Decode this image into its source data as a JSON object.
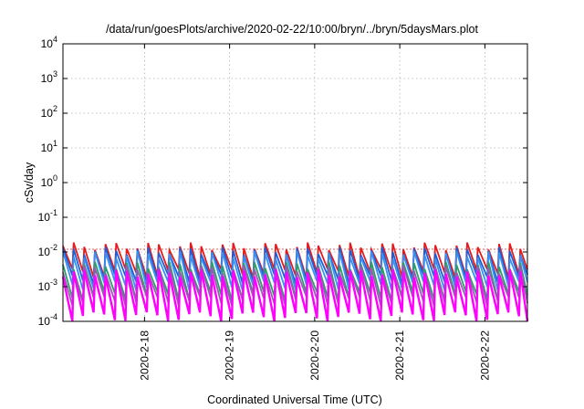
{
  "chart_data": {
    "type": "line",
    "title": "/data/run/goesPlots/archive/2020-02-22/10:00/bryn/../bryn/5daysMars.plot",
    "xlabel": "Coordinated Universal Time (UTC)",
    "ylabel": "cSv/day",
    "yscale": "log",
    "ylim": [
      0.0001,
      10000
    ],
    "y_ticks": [
      {
        "exp": "-4",
        "value": 0.0001
      },
      {
        "exp": "-3",
        "value": 0.001
      },
      {
        "exp": "-2",
        "value": 0.01
      },
      {
        "exp": "-1",
        "value": 0.1
      },
      {
        "exp": "0",
        "value": 1
      },
      {
        "exp": "1",
        "value": 10
      },
      {
        "exp": "2",
        "value": 100
      },
      {
        "exp": "3",
        "value": 1000
      },
      {
        "exp": "4",
        "value": 10000
      }
    ],
    "xlim": [
      "2020-02-17 01:00",
      "2020-02-22 12:00"
    ],
    "x_ticks": [
      {
        "label": "2020-2-18",
        "value": "2020-02-18 00:00"
      },
      {
        "label": "2020-2-19",
        "value": "2020-02-19 00:00"
      },
      {
        "label": "2020-2-20",
        "value": "2020-02-20 00:00"
      },
      {
        "label": "2020-2-21",
        "value": "2020-02-21 00:00"
      },
      {
        "label": "2020-2-22",
        "value": "2020-02-22 00:00"
      }
    ],
    "grid": true,
    "reference_line": {
      "value": 0.012,
      "color": "#d62728"
    },
    "sawtooth_period_hours": 3,
    "series": [
      {
        "color": "#e41a1c",
        "peak": 0.015,
        "trough": 0.0025
      },
      {
        "color": "#1f5fd6",
        "peak": 0.011,
        "trough": 0.0017
      },
      {
        "color": "#3a8ff0",
        "peak": 0.0085,
        "trough": 0.0011
      },
      {
        "color": "#2e9d6a",
        "peak": 0.0042,
        "trough": 0.00055
      },
      {
        "color": "#9b59b6",
        "peak": 0.0032,
        "trough": 0.0004
      },
      {
        "color": "#ff00ff",
        "peak": 0.0025,
        "trough": 0.00014
      }
    ]
  }
}
